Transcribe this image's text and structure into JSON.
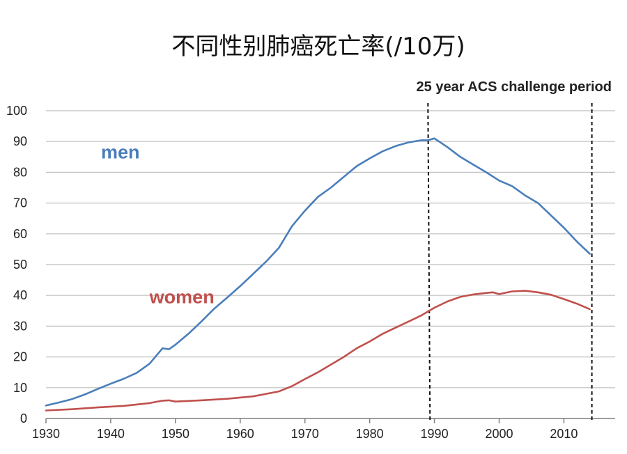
{
  "chart_data": {
    "type": "line",
    "title": "不同性别肺癌死亡率(/10万)",
    "xlabel": "",
    "ylabel": "",
    "xlim": [
      1930,
      2015
    ],
    "ylim": [
      0,
      100
    ],
    "grid": true,
    "x_ticks": [
      "1930",
      "1940",
      "1950",
      "1960",
      "1970",
      "1980",
      "1990",
      "2000",
      "2010"
    ],
    "y_ticks": [
      "0",
      "10",
      "20",
      "30",
      "40",
      "50",
      "60",
      "70",
      "80",
      "90",
      "100"
    ],
    "annotation": {
      "label": "25 year ACS challenge period",
      "x_start": 1989,
      "x_end": 2014
    },
    "series": [
      {
        "name": "men",
        "color": "#4a7ebb",
        "x": [
          1930,
          1932,
          1934,
          1936,
          1938,
          1940,
          1942,
          1944,
          1946,
          1948,
          1949,
          1950,
          1952,
          1954,
          1956,
          1958,
          1960,
          1962,
          1964,
          1966,
          1968,
          1970,
          1972,
          1974,
          1976,
          1978,
          1980,
          1982,
          1984,
          1986,
          1988,
          1989,
          1990,
          1992,
          1994,
          1996,
          1998,
          2000,
          2002,
          2004,
          2006,
          2008,
          2010,
          2012,
          2014
        ],
        "values": [
          4.2,
          5.2,
          6.3,
          7.8,
          9.6,
          11.3,
          12.9,
          14.8,
          17.8,
          22.8,
          22.5,
          24.0,
          27.5,
          31.5,
          35.7,
          39.3,
          43.0,
          47.0,
          51.0,
          55.5,
          62.5,
          67.5,
          72.0,
          75.0,
          78.5,
          82.0,
          84.5,
          86.8,
          88.5,
          89.7,
          90.4,
          90.4,
          91.0,
          88.2,
          85.0,
          82.5,
          80.0,
          77.3,
          75.5,
          72.5,
          70.0,
          66.0,
          62.0,
          57.5,
          53.5
        ]
      },
      {
        "name": "women",
        "color": "#c0504d",
        "x": [
          1930,
          1934,
          1938,
          1942,
          1946,
          1948,
          1949,
          1950,
          1954,
          1958,
          1962,
          1966,
          1968,
          1970,
          1972,
          1974,
          1976,
          1978,
          1980,
          1982,
          1984,
          1986,
          1988,
          1990,
          1992,
          1994,
          1996,
          1998,
          1999,
          2000,
          2002,
          2004,
          2006,
          2008,
          2010,
          2012,
          2014
        ],
        "values": [
          2.6,
          3.0,
          3.6,
          4.1,
          5.0,
          5.8,
          5.9,
          5.5,
          5.9,
          6.4,
          7.2,
          8.8,
          10.5,
          12.8,
          15.0,
          17.5,
          20.0,
          22.8,
          25.0,
          27.5,
          29.5,
          31.5,
          33.5,
          36.0,
          38.0,
          39.5,
          40.3,
          40.8,
          41.0,
          40.4,
          41.3,
          41.5,
          41.0,
          40.2,
          38.8,
          37.3,
          35.5
        ]
      }
    ],
    "series_labels": [
      {
        "text": "men",
        "x": 1938.5,
        "y": 84.5
      },
      {
        "text": "women",
        "x": 1946,
        "y": 37.5
      }
    ]
  }
}
